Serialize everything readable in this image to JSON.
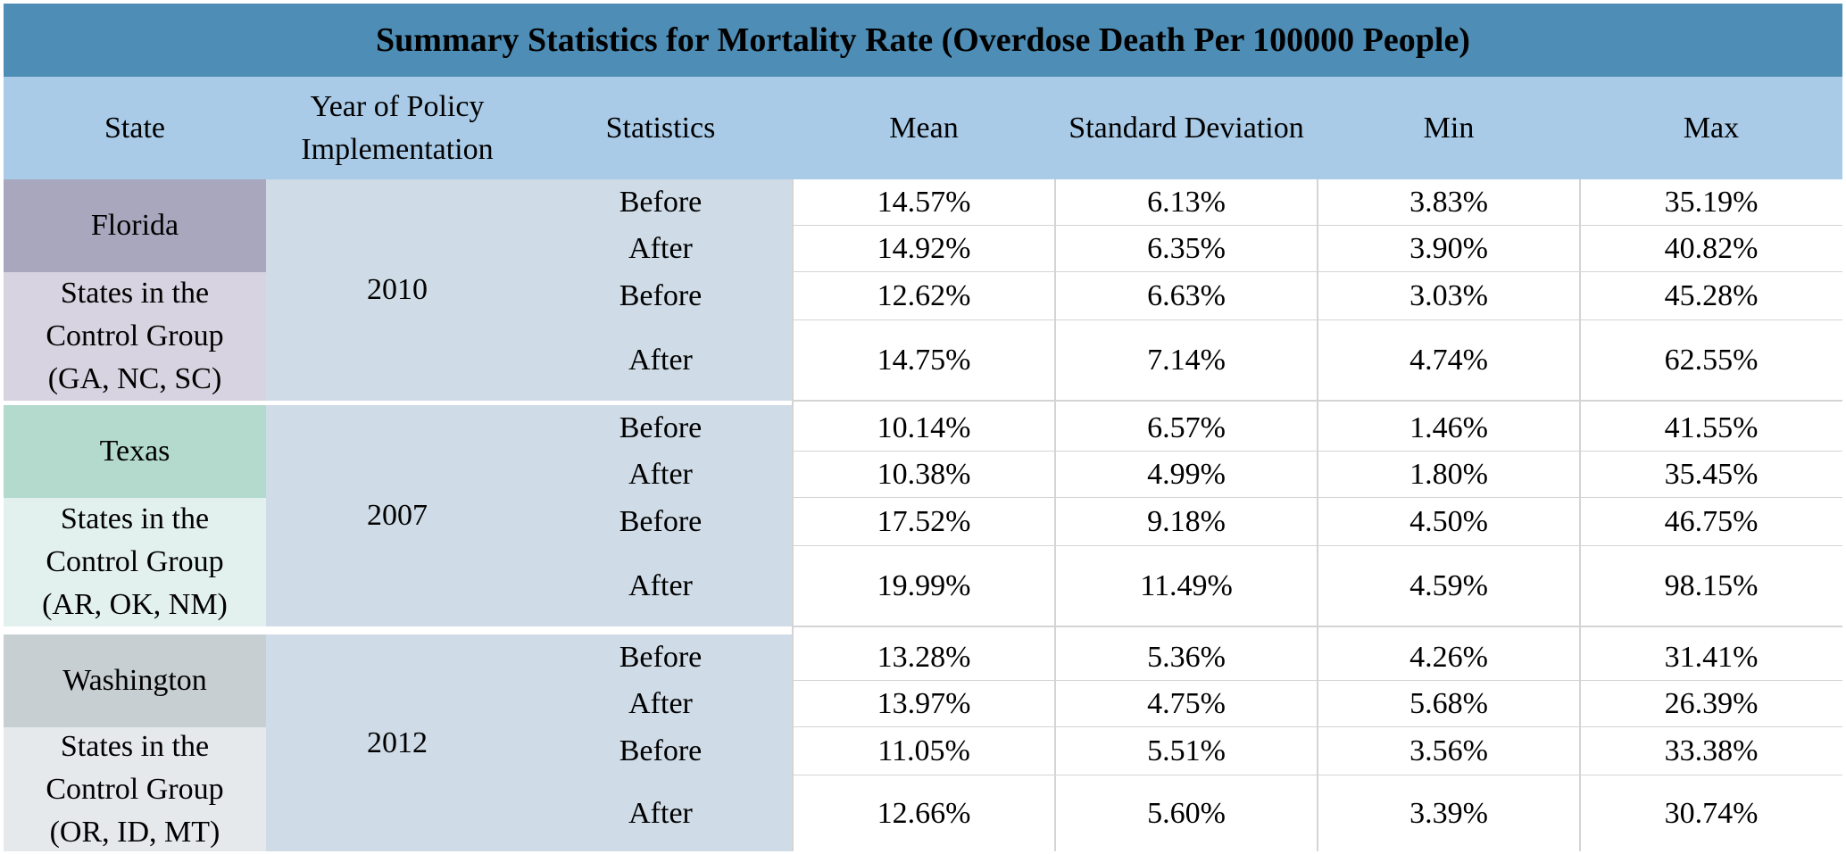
{
  "title": "Summary Statistics for Mortality Rate (Overdose Death Per 100000 People)",
  "headers": {
    "state": "State",
    "year_line1": "Year of Policy",
    "year_line2": "Implementation",
    "statistics": "Statistics",
    "mean": "Mean",
    "std": "Standard Deviation",
    "min": "Min",
    "max": "Max"
  },
  "groups": [
    {
      "year": "2010",
      "treatment": "Florida",
      "control_line1": "States in the",
      "control_line2": "Control Group",
      "control_line3": "(GA, NC, SC)",
      "treatment_color": "#a8a7bd",
      "control_color": "#d7d3e0",
      "rows": [
        {
          "stat": "Before",
          "mean": "14.57%",
          "std": "6.13%",
          "min": "3.83%",
          "max": "35.19%"
        },
        {
          "stat": "After",
          "mean": "14.92%",
          "std": "6.35%",
          "min": "3.90%",
          "max": "40.82%"
        },
        {
          "stat": "Before",
          "mean": "12.62%",
          "std": "6.63%",
          "min": "3.03%",
          "max": "45.28%"
        },
        {
          "stat": "After",
          "mean": "14.75%",
          "std": "7.14%",
          "min": "4.74%",
          "max": "62.55%"
        }
      ]
    },
    {
      "year": "2007",
      "treatment": "Texas",
      "control_line1": "States in the",
      "control_line2": "Control Group",
      "control_line3": "(AR, OK, NM)",
      "treatment_color": "#b3dacd",
      "control_color": "#e3f1ee",
      "rows": [
        {
          "stat": "Before",
          "mean": "10.14%",
          "std": "6.57%",
          "min": "1.46%",
          "max": "41.55%"
        },
        {
          "stat": "After",
          "mean": "10.38%",
          "std": "4.99%",
          "min": "1.80%",
          "max": "35.45%"
        },
        {
          "stat": "Before",
          "mean": "17.52%",
          "std": "9.18%",
          "min": "4.50%",
          "max": "46.75%"
        },
        {
          "stat": "After",
          "mean": "19.99%",
          "std": "11.49%",
          "min": "4.59%",
          "max": "98.15%"
        }
      ]
    },
    {
      "year": "2012",
      "treatment": "Washington",
      "control_line1": "States in the",
      "control_line2": "Control Group",
      "control_line3": "(OR, ID, MT)",
      "treatment_color": "#c8cfd3",
      "control_color": "#e5e9ec",
      "rows": [
        {
          "stat": "Before",
          "mean": "13.28%",
          "std": "5.36%",
          "min": "4.26%",
          "max": "31.41%"
        },
        {
          "stat": "After",
          "mean": "13.97%",
          "std": "4.75%",
          "min": "5.68%",
          "max": "26.39%"
        },
        {
          "stat": "Before",
          "mean": "11.05%",
          "std": "5.51%",
          "min": "3.56%",
          "max": "33.38%"
        },
        {
          "stat": "After",
          "mean": "12.66%",
          "std": "5.60%",
          "min": "3.39%",
          "max": "30.74%"
        }
      ]
    }
  ]
}
